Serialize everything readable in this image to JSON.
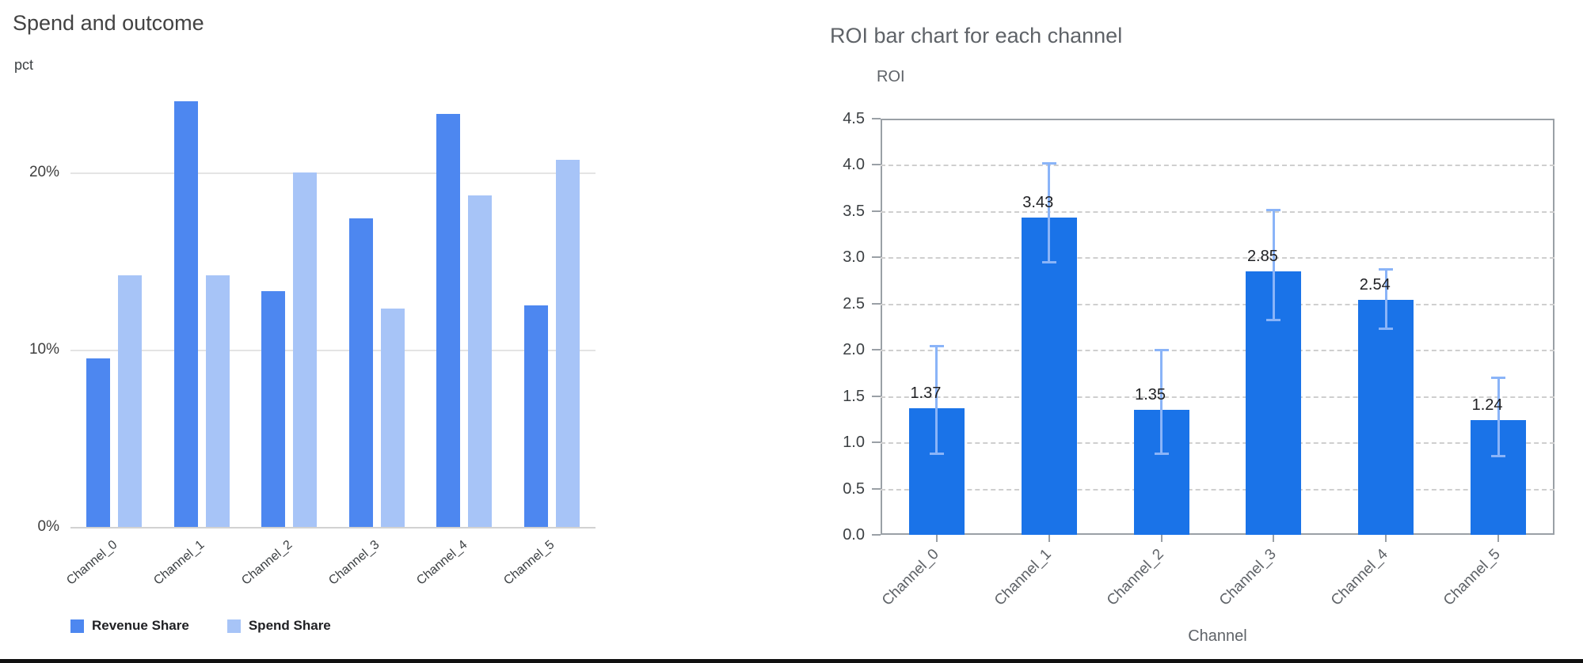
{
  "chart_data": [
    {
      "type": "bar",
      "title": "Spend and outcome",
      "ylabel": "pct",
      "xlabel": "",
      "categories": [
        "Channel_0",
        "Channel_1",
        "Channel_2",
        "Channel_3",
        "Channel_4",
        "Channel_5"
      ],
      "series": [
        {
          "name": "Revenue Share",
          "color": "#4d87f0",
          "values": [
            9.5,
            24.0,
            13.3,
            17.4,
            23.3,
            12.5
          ]
        },
        {
          "name": "Spend Share",
          "color": "#a7c4f7",
          "values": [
            14.2,
            14.2,
            20.0,
            12.3,
            18.7,
            20.7
          ]
        }
      ],
      "ylim": [
        0,
        25
      ],
      "yticks": [
        0,
        10,
        20
      ],
      "ytick_labels": [
        "0%",
        "10%",
        "20%"
      ],
      "grid": true,
      "legend_position": "bottom"
    },
    {
      "type": "bar",
      "title": "ROI bar chart for each channel",
      "ylabel": "ROI",
      "xlabel": "Channel",
      "categories": [
        "Channel_0",
        "Channel_1",
        "Channel_2",
        "Channel_3",
        "Channel_4",
        "Channel_5"
      ],
      "values": [
        1.37,
        3.43,
        1.35,
        2.85,
        2.54,
        1.24
      ],
      "bar_labels": [
        "1.37",
        "3.43",
        "1.35",
        "2.85",
        "2.54",
        "1.24"
      ],
      "error_low": [
        0.88,
        2.95,
        0.88,
        2.32,
        2.23,
        0.85
      ],
      "error_high": [
        2.04,
        4.02,
        2.0,
        3.51,
        2.87,
        1.7
      ],
      "bar_color": "#1a73e8",
      "error_color": "#8ab4f8",
      "ylim": [
        0,
        4.5
      ],
      "yticks": [
        0,
        0.5,
        1,
        1.5,
        2,
        2.5,
        3,
        3.5,
        4,
        4.5
      ],
      "ytick_labels": [
        "0.0",
        "0.5",
        "1.0",
        "1.5",
        "2.0",
        "2.5",
        "3.0",
        "3.5",
        "4.0",
        "4.5"
      ],
      "grid": true,
      "grid_style": "dashed"
    }
  ]
}
